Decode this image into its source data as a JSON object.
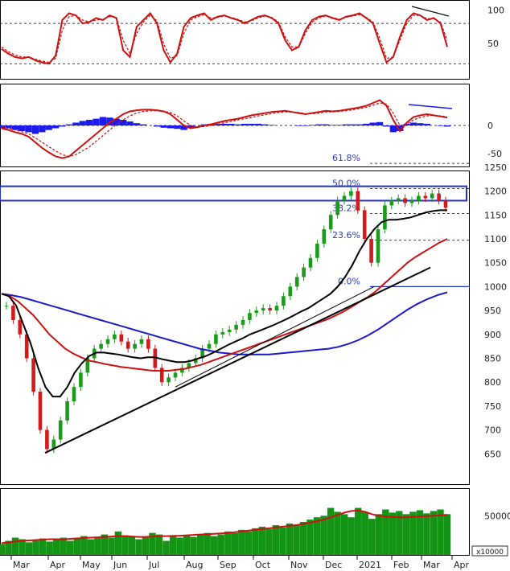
{
  "chart_data": [
    {
      "type": "line",
      "name": "stochastic",
      "ylim": [
        0,
        110
      ],
      "y_ticks": [
        "100",
        "50"
      ],
      "reference_levels": [
        80,
        20
      ],
      "series": [
        {
          "color": "#cc1111",
          "values": [
            42,
            35,
            30,
            28,
            30,
            25,
            22,
            20,
            32,
            85,
            95,
            92,
            80,
            82,
            88,
            85,
            92,
            88,
            40,
            30,
            75,
            85,
            95,
            80,
            40,
            22,
            35,
            75,
            88,
            92,
            95,
            85,
            90,
            92,
            88,
            85,
            80,
            85,
            90,
            92,
            88,
            80,
            55,
            40,
            45,
            70,
            85,
            90,
            92,
            88,
            85,
            90,
            92,
            95,
            88,
            80,
            50,
            22,
            30,
            60,
            85,
            95,
            92,
            85,
            88,
            80,
            45
          ]
        },
        {
          "color": "#cc1111",
          "dashed": true,
          "values": [
            45,
            38,
            33,
            30,
            30,
            27,
            24,
            22,
            28,
            70,
            90,
            92,
            85,
            82,
            85,
            86,
            90,
            89,
            55,
            35,
            65,
            82,
            92,
            84,
            50,
            28,
            32,
            65,
            85,
            90,
            93,
            88,
            89,
            91,
            89,
            86,
            82,
            84,
            88,
            91,
            89,
            82,
            60,
            45,
            45,
            65,
            82,
            88,
            91,
            89,
            86,
            89,
            91,
            93,
            89,
            82,
            58,
            28,
            30,
            55,
            80,
            92,
            92,
            87,
            87,
            82,
            55
          ]
        }
      ]
    },
    {
      "type": "area",
      "name": "macd",
      "ylim": [
        -70,
        70
      ],
      "y_ticks": [
        "0",
        "-50"
      ],
      "series": [
        {
          "color": "#cc1111",
          "values": [
            -5,
            -8,
            -12,
            -15,
            -20,
            -30,
            -40,
            -48,
            -55,
            -58,
            -55,
            -45,
            -35,
            -25,
            -15,
            -5,
            5,
            12,
            20,
            25,
            27,
            28,
            28,
            27,
            25,
            20,
            10,
            0,
            -5,
            -3,
            0,
            2,
            5,
            8,
            10,
            12,
            15,
            18,
            20,
            22,
            24,
            25,
            26,
            24,
            22,
            20,
            22,
            24,
            26,
            25,
            26,
            28,
            30,
            32,
            35,
            40,
            45,
            35,
            10,
            -10,
            5,
            15,
            18,
            20,
            18,
            16,
            14
          ]
        },
        {
          "color": "#cc1111",
          "dashed": true,
          "values": [
            -3,
            -5,
            -8,
            -11,
            -15,
            -22,
            -30,
            -38,
            -45,
            -52,
            -55,
            -52,
            -45,
            -38,
            -28,
            -18,
            -8,
            2,
            10,
            17,
            22,
            25,
            26,
            26,
            25,
            23,
            17,
            8,
            0,
            -3,
            -2,
            0,
            2,
            5,
            7,
            10,
            12,
            14,
            17,
            19,
            21,
            23,
            24,
            24,
            23,
            21,
            21,
            22,
            24,
            24,
            25,
            26,
            28,
            30,
            32,
            36,
            40,
            38,
            22,
            0,
            2,
            10,
            14,
            17,
            18,
            17,
            15
          ]
        },
        {
          "color": "#1a1aee",
          "values": [
            -5,
            -5,
            -8,
            -10,
            -12,
            -15,
            -12,
            -8,
            -5,
            -2,
            2,
            5,
            8,
            10,
            12,
            15,
            14,
            12,
            10,
            7,
            4,
            2,
            0,
            -2,
            -4,
            -5,
            -6,
            -8,
            -5,
            0,
            2,
            3,
            3,
            3,
            3,
            2,
            3,
            3,
            3,
            2,
            1,
            0,
            0,
            0,
            -1,
            -1,
            1,
            2,
            2,
            1,
            1,
            2,
            2,
            2,
            3,
            5,
            6,
            -2,
            -12,
            -10,
            3,
            5,
            4,
            3,
            0,
            -1,
            -2
          ]
        }
      ]
    },
    {
      "type": "candlestick",
      "name": "price",
      "ylim": [
        590,
        1270
      ],
      "y_ticks": [
        "1250",
        "1200",
        "1150",
        "1100",
        "1050",
        "1000",
        "950",
        "900",
        "850",
        "800",
        "750",
        "700",
        "650"
      ],
      "fibonacci": [
        {
          "label": "61.8%",
          "value": 1258
        },
        {
          "label": "50.0%",
          "value": 1205
        },
        {
          "label": "38.2%",
          "value": 1153
        },
        {
          "label": "23.6%",
          "value": 1097
        },
        {
          "label": "0.0%",
          "value": 1000
        }
      ],
      "resistance_zone": [
        1180,
        1210
      ],
      "close": [
        960,
        930,
        900,
        850,
        780,
        700,
        660,
        680,
        720,
        760,
        790,
        820,
        850,
        870,
        880,
        890,
        900,
        885,
        870,
        880,
        890,
        870,
        830,
        800,
        810,
        820,
        830,
        840,
        850,
        870,
        880,
        900,
        905,
        910,
        920,
        930,
        945,
        950,
        955,
        950,
        960,
        980,
        1000,
        1020,
        1040,
        1060,
        1090,
        1120,
        1150,
        1180,
        1190,
        1200,
        1160,
        1100,
        1050,
        1120,
        1170,
        1180,
        1185,
        1175,
        1180,
        1190,
        1185,
        1195,
        1180,
        1165
      ],
      "ma_short": [
        985,
        980,
        960,
        920,
        880,
        830,
        790,
        770,
        770,
        790,
        820,
        840,
        855,
        862,
        862,
        860,
        858,
        855,
        852,
        850,
        852,
        852,
        848,
        845,
        842,
        842,
        845,
        850,
        855,
        862,
        870,
        878,
        885,
        892,
        900,
        906,
        912,
        918,
        925,
        932,
        940,
        948,
        955,
        965,
        975,
        985,
        1000,
        1020,
        1045,
        1075,
        1100,
        1120,
        1135,
        1140,
        1140,
        1142,
        1145,
        1150,
        1155,
        1158,
        1160,
        1160
      ],
      "ma_mid": [
        985,
        980,
        970,
        955,
        940,
        920,
        900,
        885,
        870,
        860,
        852,
        845,
        842,
        838,
        835,
        832,
        830,
        828,
        826,
        824,
        824,
        824,
        826,
        828,
        832,
        836,
        842,
        848,
        854,
        860,
        866,
        872,
        878,
        884,
        890,
        896,
        902,
        908,
        914,
        920,
        926,
        932,
        940,
        948,
        958,
        968,
        978,
        990,
        1005,
        1020,
        1035,
        1050,
        1062,
        1072,
        1082,
        1092,
        1100
      ],
      "ma_long": [
        985,
        982,
        978,
        972,
        966,
        960,
        954,
        948,
        942,
        936,
        930,
        924,
        918,
        912,
        906,
        900,
        894,
        888,
        882,
        876,
        870,
        866,
        862,
        860,
        858,
        858,
        858,
        858,
        860,
        862,
        864,
        866,
        868,
        870,
        874,
        880,
        888,
        898,
        910,
        924,
        938,
        952,
        964,
        974,
        982,
        988
      ],
      "trendlines": [
        {
          "from": [
            "2020-03-23",
            652
          ],
          "to": [
            "2021-03-10",
            1040
          ]
        },
        {
          "from": [
            "2020-07-25",
            780
          ],
          "to": [
            "2021-01-05",
            1000
          ]
        }
      ]
    },
    {
      "type": "bar",
      "name": "volume",
      "ylim": [
        0,
        80000
      ],
      "y_ticks": [
        "50000"
      ],
      "scale_label": "x10000",
      "volume": [
        14000,
        18000,
        22000,
        20000,
        16000,
        18000,
        21000,
        17000,
        19000,
        22000,
        18000,
        21000,
        24000,
        20000,
        23000,
        26000,
        22000,
        30000,
        25000,
        24000,
        20000,
        22000,
        28000,
        26000,
        18000,
        24000,
        22000,
        25000,
        23000,
        26000,
        28000,
        24000,
        26000,
        30000,
        28000,
        32000,
        30000,
        34000,
        36000,
        33000,
        38000,
        35000,
        40000,
        38000,
        42000,
        45000,
        48000,
        50000,
        60000,
        55000,
        52000,
        48000,
        60000,
        55000,
        46000,
        52000,
        58000,
        54000,
        56000,
        52000,
        55000,
        57000,
        53000,
        56000,
        58000,
        52000
      ],
      "ma": [
        15000,
        16000,
        17000,
        18000,
        18500,
        19000,
        19500,
        20000,
        20000,
        19800,
        20500,
        21000,
        21500,
        22000,
        22500,
        23000,
        23500,
        24000,
        24000,
        23500,
        23000,
        23000,
        23500,
        24000,
        24000,
        24200,
        24500,
        25000,
        25500,
        26000,
        26500,
        27000,
        27500,
        28000,
        29000,
        30000,
        31000,
        32000,
        33000,
        34000,
        35000,
        36000,
        37000,
        38000,
        39500,
        41000,
        43000,
        45000,
        48000,
        51000,
        54000,
        56000,
        56500,
        55000,
        52000,
        50000,
        49000,
        48500,
        48000,
        48000,
        48500,
        49000,
        49500,
        50000,
        50500,
        51000
      ]
    }
  ],
  "x_labels": [
    "Mar",
    "Apr",
    "May",
    "Jun",
    "Jul",
    "Aug",
    "Sep",
    "Oct",
    "Nov",
    "Dec",
    "2021",
    "Feb",
    "Mar",
    "Apr"
  ]
}
